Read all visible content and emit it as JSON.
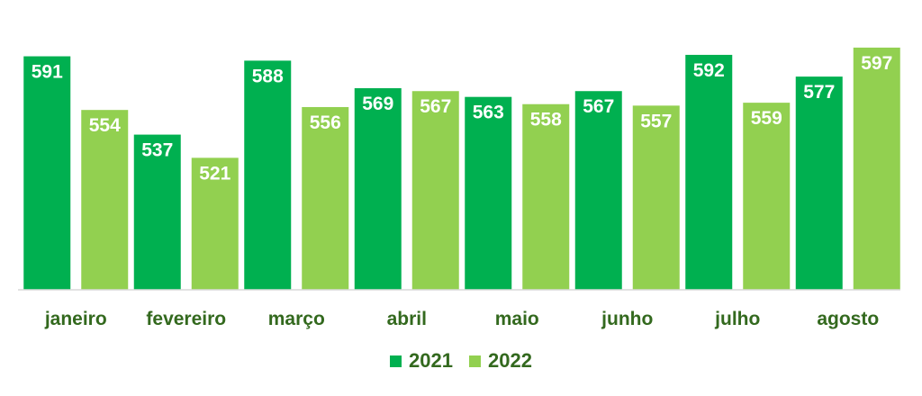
{
  "chart_data": {
    "type": "bar",
    "categories": [
      "janeiro",
      "fevereiro",
      "março",
      "abril",
      "maio",
      "junho",
      "julho",
      "agosto"
    ],
    "series": [
      {
        "name": "2021",
        "values": [
          591,
          537,
          588,
          569,
          563,
          567,
          592,
          577
        ],
        "color": "#00b050"
      },
      {
        "name": "2022",
        "values": [
          554,
          521,
          556,
          567,
          558,
          557,
          559,
          597
        ],
        "color": "#92d050"
      }
    ],
    "title": "",
    "xlabel": "",
    "ylabel": "",
    "ylim": [
      430,
      605
    ],
    "grid": false,
    "legend_position": "bottom",
    "data_labels": true,
    "label_color": "#ffffff",
    "category_label_color": "#33691e"
  }
}
